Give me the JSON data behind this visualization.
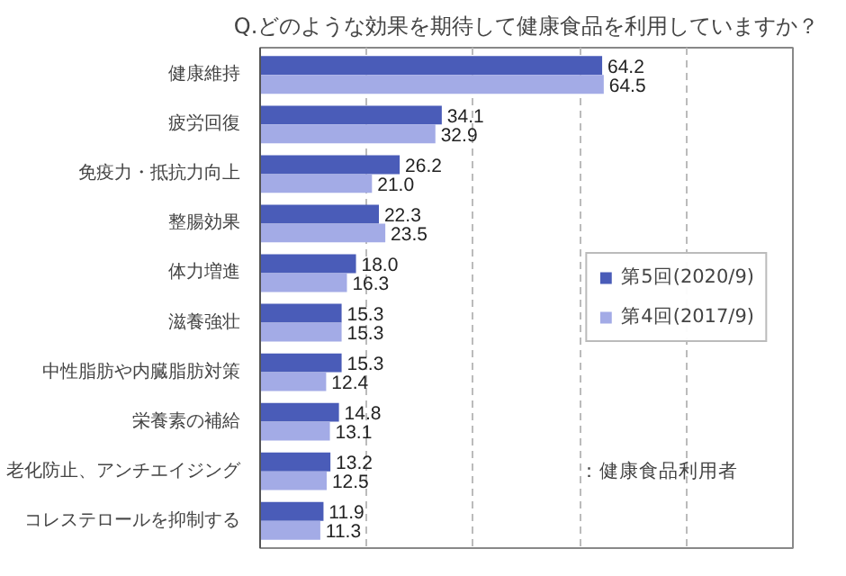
{
  "chart_data": {
    "type": "bar",
    "orientation": "horizontal",
    "title": "Q.どのような効果を期待して健康食品を利用していますか？",
    "categories": [
      "健康維持",
      "疲労回復",
      "免疫力・抵抗力向上",
      "整腸効果",
      "体力増進",
      "滋養強壮",
      "中性脂肪や内臓脂肪対策",
      "栄養素の補給",
      "老化防止、アンチエイジング",
      "コレステロールを抑制する"
    ],
    "series": [
      {
        "name": "第5回(2020/9)",
        "color": "#4a5cb8",
        "values": [
          64.2,
          34.1,
          26.2,
          22.3,
          18.0,
          15.3,
          15.3,
          14.8,
          13.2,
          11.9
        ],
        "value_labels": [
          "64.2",
          "34.1",
          "26.2",
          "22.3",
          "18.0",
          "15.3",
          "15.3",
          "14.8",
          "13.2",
          "11.9"
        ]
      },
      {
        "name": "第4回(2017/9)",
        "color": "#a3abe6",
        "values": [
          64.5,
          32.9,
          21.0,
          23.5,
          16.3,
          15.3,
          12.4,
          13.1,
          12.5,
          11.3
        ],
        "value_labels": [
          "64.5",
          "32.9",
          "21.0",
          "23.5",
          "16.3",
          "15.3",
          "12.4",
          "13.1",
          "12.5",
          "11.3"
        ]
      }
    ],
    "xlim": [
      0,
      100
    ],
    "xticks": [
      {
        "value": 20,
        "label": null
      },
      {
        "value": 40,
        "label": null
      },
      {
        "value": 60,
        "label": null
      },
      {
        "value": 80,
        "label": null
      }
    ],
    "tick_labels": "y",
    "grid": "x",
    "legend": "right",
    "annotations": [
      "：健康食品利用者"
    ]
  }
}
